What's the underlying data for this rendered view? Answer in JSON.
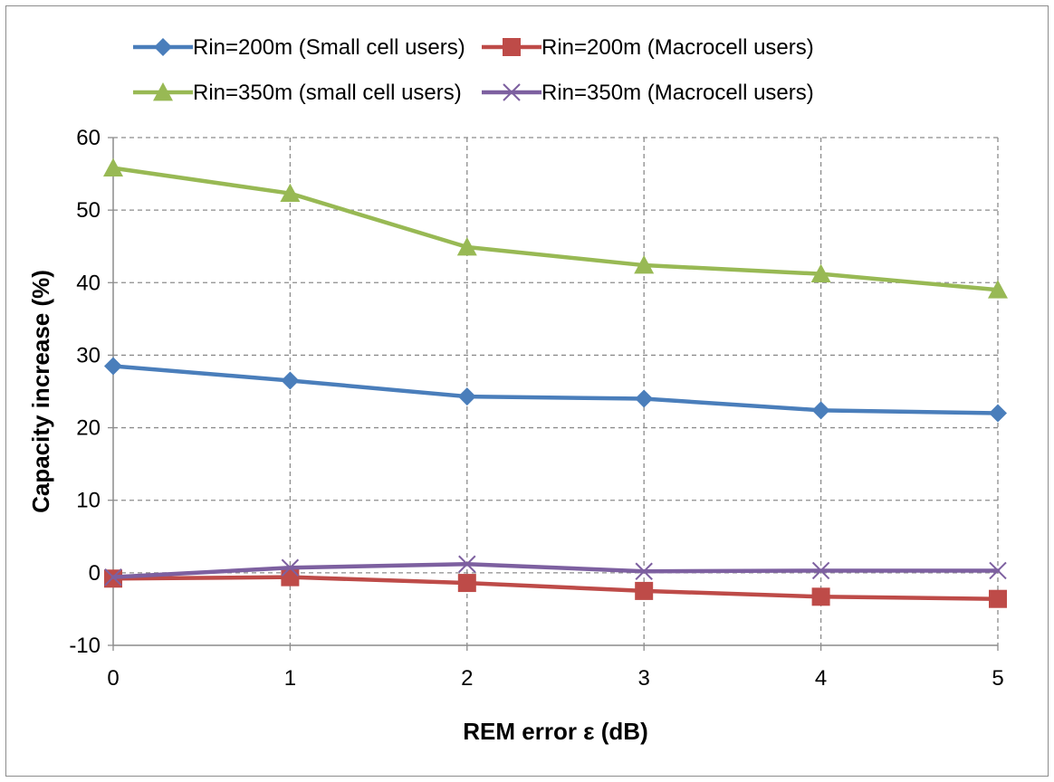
{
  "chart_data": {
    "type": "line",
    "title": "",
    "xlabel": "REM error  ε (dB)",
    "ylabel": "Capacity increase (%)",
    "x": [
      0,
      1,
      2,
      3,
      4,
      5
    ],
    "xlim": [
      0,
      5
    ],
    "ylim": [
      -10,
      60
    ],
    "yticks": [
      -10,
      0,
      10,
      20,
      30,
      40,
      50,
      60
    ],
    "grid": true,
    "legend_position": "top",
    "series": [
      {
        "name": "Rin=200m (Small cell users)",
        "marker": "diamond",
        "color": "#4a7ebb",
        "values": [
          28.5,
          26.5,
          24.3,
          24.0,
          22.4,
          22.0
        ]
      },
      {
        "name": "Rin=200m (Macrocell users)",
        "marker": "square",
        "color": "#be4b48",
        "values": [
          -0.8,
          -0.6,
          -1.4,
          -2.5,
          -3.3,
          -3.6
        ]
      },
      {
        "name": "Rin=350m (small cell users)",
        "marker": "triangle",
        "color": "#98b954",
        "values": [
          55.8,
          52.3,
          44.9,
          42.4,
          41.2,
          39.0
        ]
      },
      {
        "name": "Rin=350m (Macrocell users)",
        "marker": "x",
        "color": "#7d60a0",
        "values": [
          -0.6,
          0.7,
          1.2,
          0.2,
          0.3,
          0.3
        ]
      }
    ]
  }
}
